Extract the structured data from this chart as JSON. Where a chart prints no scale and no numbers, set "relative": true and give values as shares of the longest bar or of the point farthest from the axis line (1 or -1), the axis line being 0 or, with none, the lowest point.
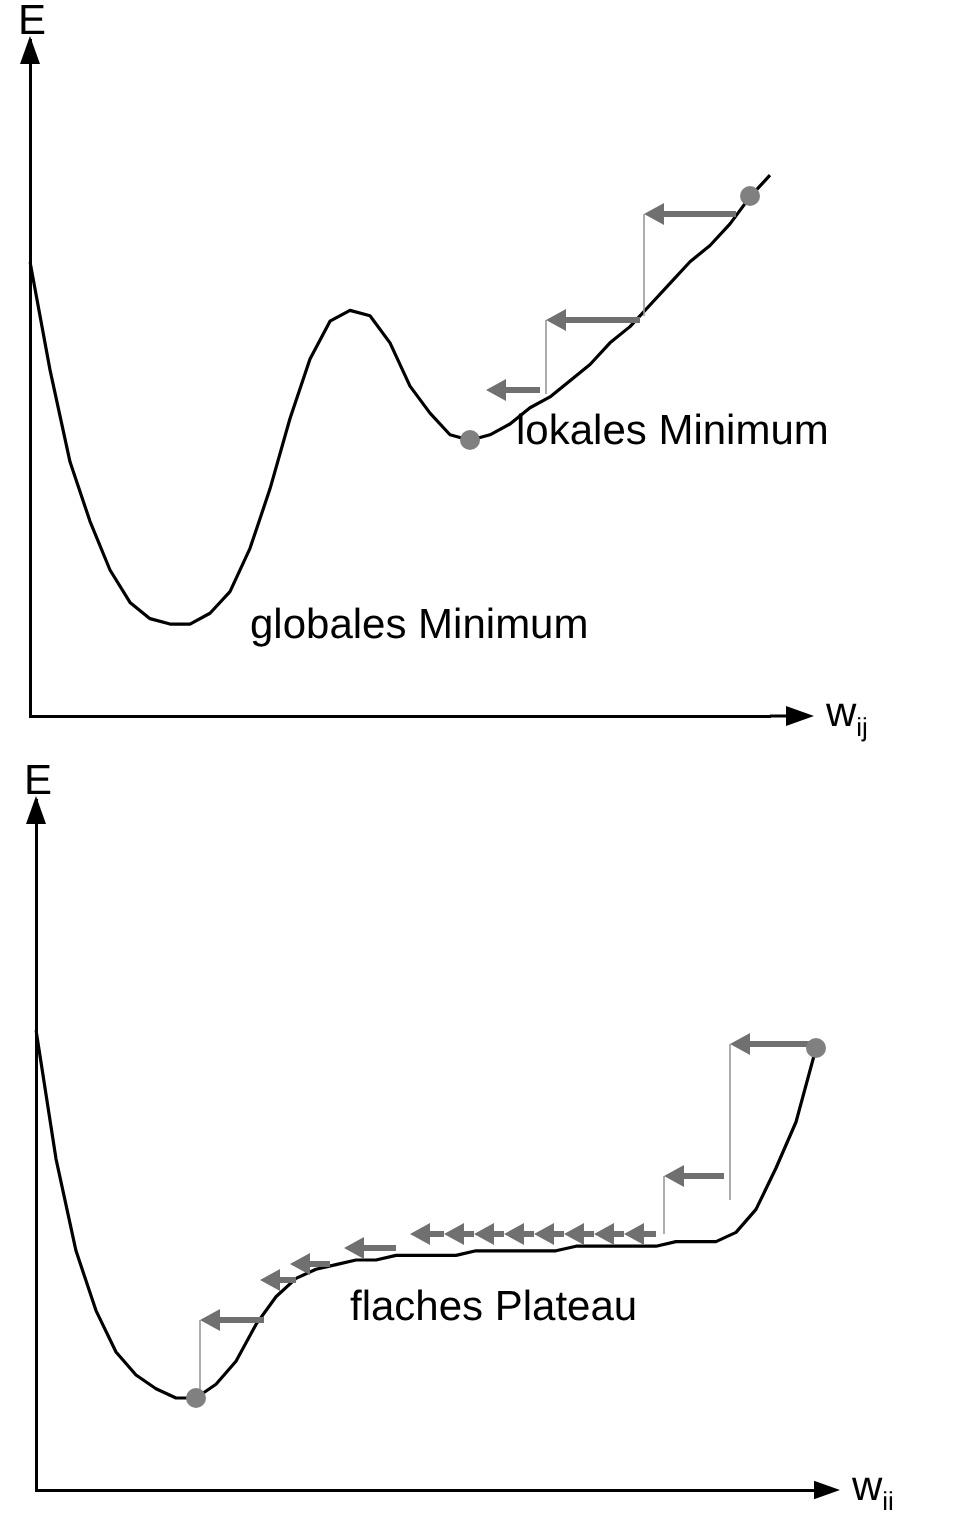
{
  "chart_data": [
    {
      "type": "line",
      "relative": true,
      "ylabel": "E",
      "xlabel": "w$_{ij}$",
      "annotations": [
        "globales Minimum",
        "lokales Minimum"
      ],
      "categories": [
        null,
        null,
        null,
        null,
        null,
        null,
        null,
        null,
        null,
        null,
        null,
        null,
        null,
        null,
        null,
        null,
        null,
        null,
        null,
        null,
        null,
        null,
        null,
        null,
        null,
        null,
        null,
        null,
        null,
        null,
        null,
        null,
        null,
        null,
        null,
        null,
        null,
        null
      ],
      "series": [
        {
          "color": "#000000",
          "values": [
            0.84,
            0.64,
            0.47,
            0.36,
            0.27,
            0.21,
            0.18,
            0.17,
            0.17,
            0.19,
            0.23,
            0.31,
            0.42,
            0.55,
            0.66,
            0.73,
            0.75,
            0.74,
            0.69,
            0.61,
            0.56,
            0.52,
            0.51,
            0.52,
            0.54,
            0.57,
            0.59,
            0.62,
            0.65,
            0.69,
            0.72,
            0.76,
            0.8,
            0.84,
            0.87,
            0.91,
            0.96,
            1
          ]
        }
      ]
    },
    {
      "type": "line",
      "relative": true,
      "ylabel": "E",
      "xlabel": "w$_{ii}$",
      "annotations": [
        "flaches Plateau"
      ],
      "categories": [
        null,
        null,
        null,
        null,
        null,
        null,
        null,
        null,
        null,
        null,
        null,
        null,
        null,
        null,
        null,
        null,
        null,
        null,
        null,
        null,
        null,
        null,
        null,
        null,
        null,
        null,
        null,
        null,
        null,
        null,
        null,
        null,
        null,
        null,
        null,
        null,
        null,
        null,
        null,
        null
      ],
      "series": [
        {
          "color": "#000000",
          "values": [
            1,
            0.72,
            0.52,
            0.39,
            0.3,
            0.25,
            0.22,
            0.2,
            0.2,
            0.23,
            0.28,
            0.36,
            0.42,
            0.46,
            0.48,
            0.49,
            0.5,
            0.5,
            0.51,
            0.51,
            0.51,
            0.51,
            0.52,
            0.52,
            0.52,
            0.52,
            0.52,
            0.53,
            0.53,
            0.53,
            0.53,
            0.53,
            0.54,
            0.54,
            0.54,
            0.56,
            0.61,
            0.7,
            0.8,
            0.96
          ]
        }
      ]
    }
  ]
}
